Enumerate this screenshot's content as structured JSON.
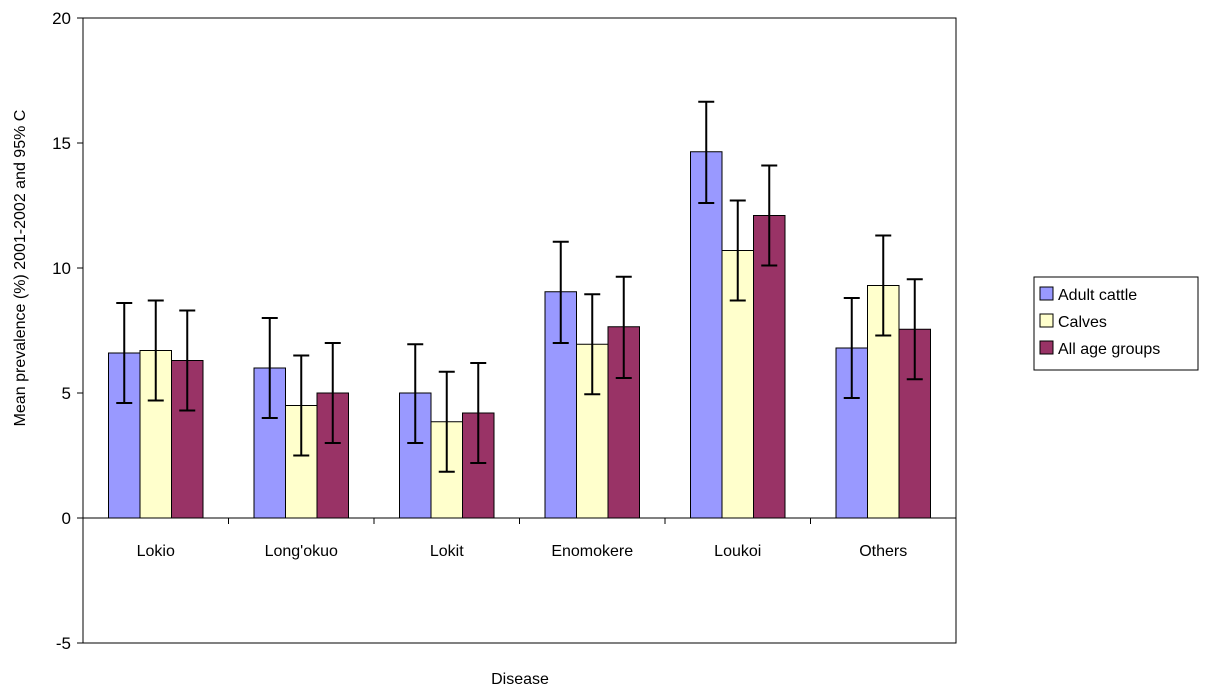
{
  "chart_data": {
    "type": "bar",
    "xlabel": "Disease",
    "ylabel": "Mean prevalence (%) 2001-2002 and 95% C",
    "ylim": [
      -5,
      20
    ],
    "yticks": [
      "-5",
      "0",
      "5",
      "10",
      "15",
      "20"
    ],
    "ytick_values": [
      -5,
      0,
      5,
      10,
      15,
      20
    ],
    "categories": [
      "Lokio",
      "Long'okuo",
      "Lokit",
      "Enomokere",
      "Loukoi",
      "Others"
    ],
    "series": [
      {
        "name": "Adult cattle",
        "color": "#9999ff",
        "values": [
          6.6,
          6.0,
          5.0,
          9.05,
          14.65,
          6.8
        ],
        "ci_low": [
          4.6,
          4.0,
          3.0,
          7.0,
          12.6,
          4.8
        ],
        "ci_high": [
          8.6,
          8.0,
          6.95,
          11.05,
          16.65,
          8.8
        ]
      },
      {
        "name": "Calves",
        "color": "#ffffcc",
        "values": [
          6.7,
          4.5,
          3.85,
          6.95,
          10.7,
          9.3
        ],
        "ci_low": [
          4.7,
          2.5,
          1.85,
          4.95,
          8.7,
          7.3
        ],
        "ci_high": [
          8.7,
          6.5,
          5.85,
          8.95,
          12.7,
          11.3
        ]
      },
      {
        "name": "All age groups",
        "color": "#993366",
        "values": [
          6.3,
          5.0,
          4.2,
          7.65,
          12.1,
          7.55
        ],
        "ci_low": [
          4.3,
          3.0,
          2.2,
          5.6,
          10.1,
          5.55
        ],
        "ci_high": [
          8.3,
          7.0,
          6.2,
          9.65,
          14.1,
          9.55
        ]
      }
    ],
    "legend_position": "right",
    "grid": false
  }
}
